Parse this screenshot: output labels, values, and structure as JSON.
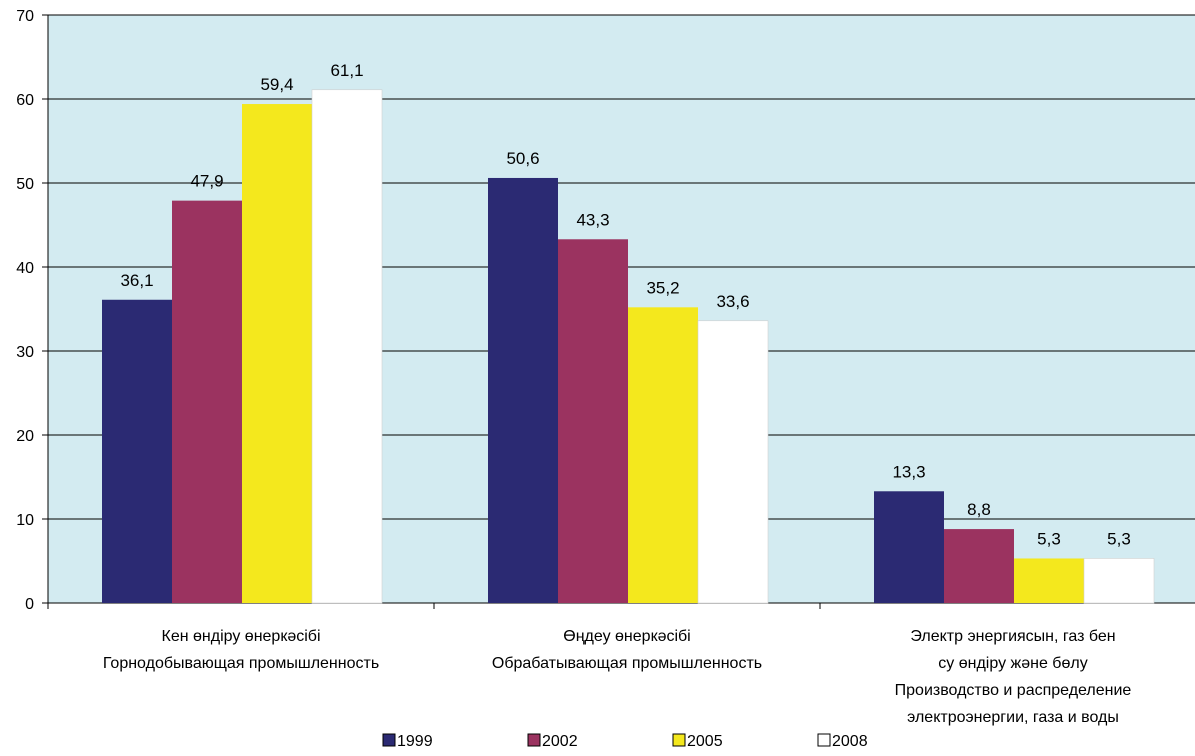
{
  "chart_data": {
    "type": "bar",
    "categories": [
      [
        "Кен өндіру өнеркәсібі",
        "Горнодобывающая промышленность"
      ],
      [
        "Өңдеу өнеркәсібі",
        "Обрабатывающая промышленность"
      ],
      [
        "Электр энергиясын, газ бен",
        "су өндіру және бөлу",
        "Производство и распределение",
        "электроэнергии, газа и воды"
      ]
    ],
    "series": [
      {
        "name": "1999",
        "color": "#2b2a73",
        "values": [
          36.1,
          50.6,
          13.3
        ]
      },
      {
        "name": "2002",
        "color": "#9b3360",
        "values": [
          47.9,
          43.3,
          8.8
        ]
      },
      {
        "name": "2005",
        "color": "#f4e81d",
        "values": [
          59.4,
          35.2,
          5.3
        ]
      },
      {
        "name": "2008",
        "color": "#ffffff",
        "values": [
          61.1,
          33.6,
          5.3
        ]
      }
    ],
    "data_labels": [
      [
        "36,1",
        "50,6",
        "13,3"
      ],
      [
        "47,9",
        "43,3",
        "8,8"
      ],
      [
        "59,4",
        "35,2",
        "5,3"
      ],
      [
        "61,1",
        "33,6",
        "5,3"
      ]
    ],
    "yticks": [
      "0",
      "10",
      "20",
      "30",
      "40",
      "50",
      "60",
      "70"
    ],
    "ylim": [
      0,
      70
    ],
    "grid": true,
    "legend_position": "bottom",
    "plot_background": "#d3ebf1"
  }
}
